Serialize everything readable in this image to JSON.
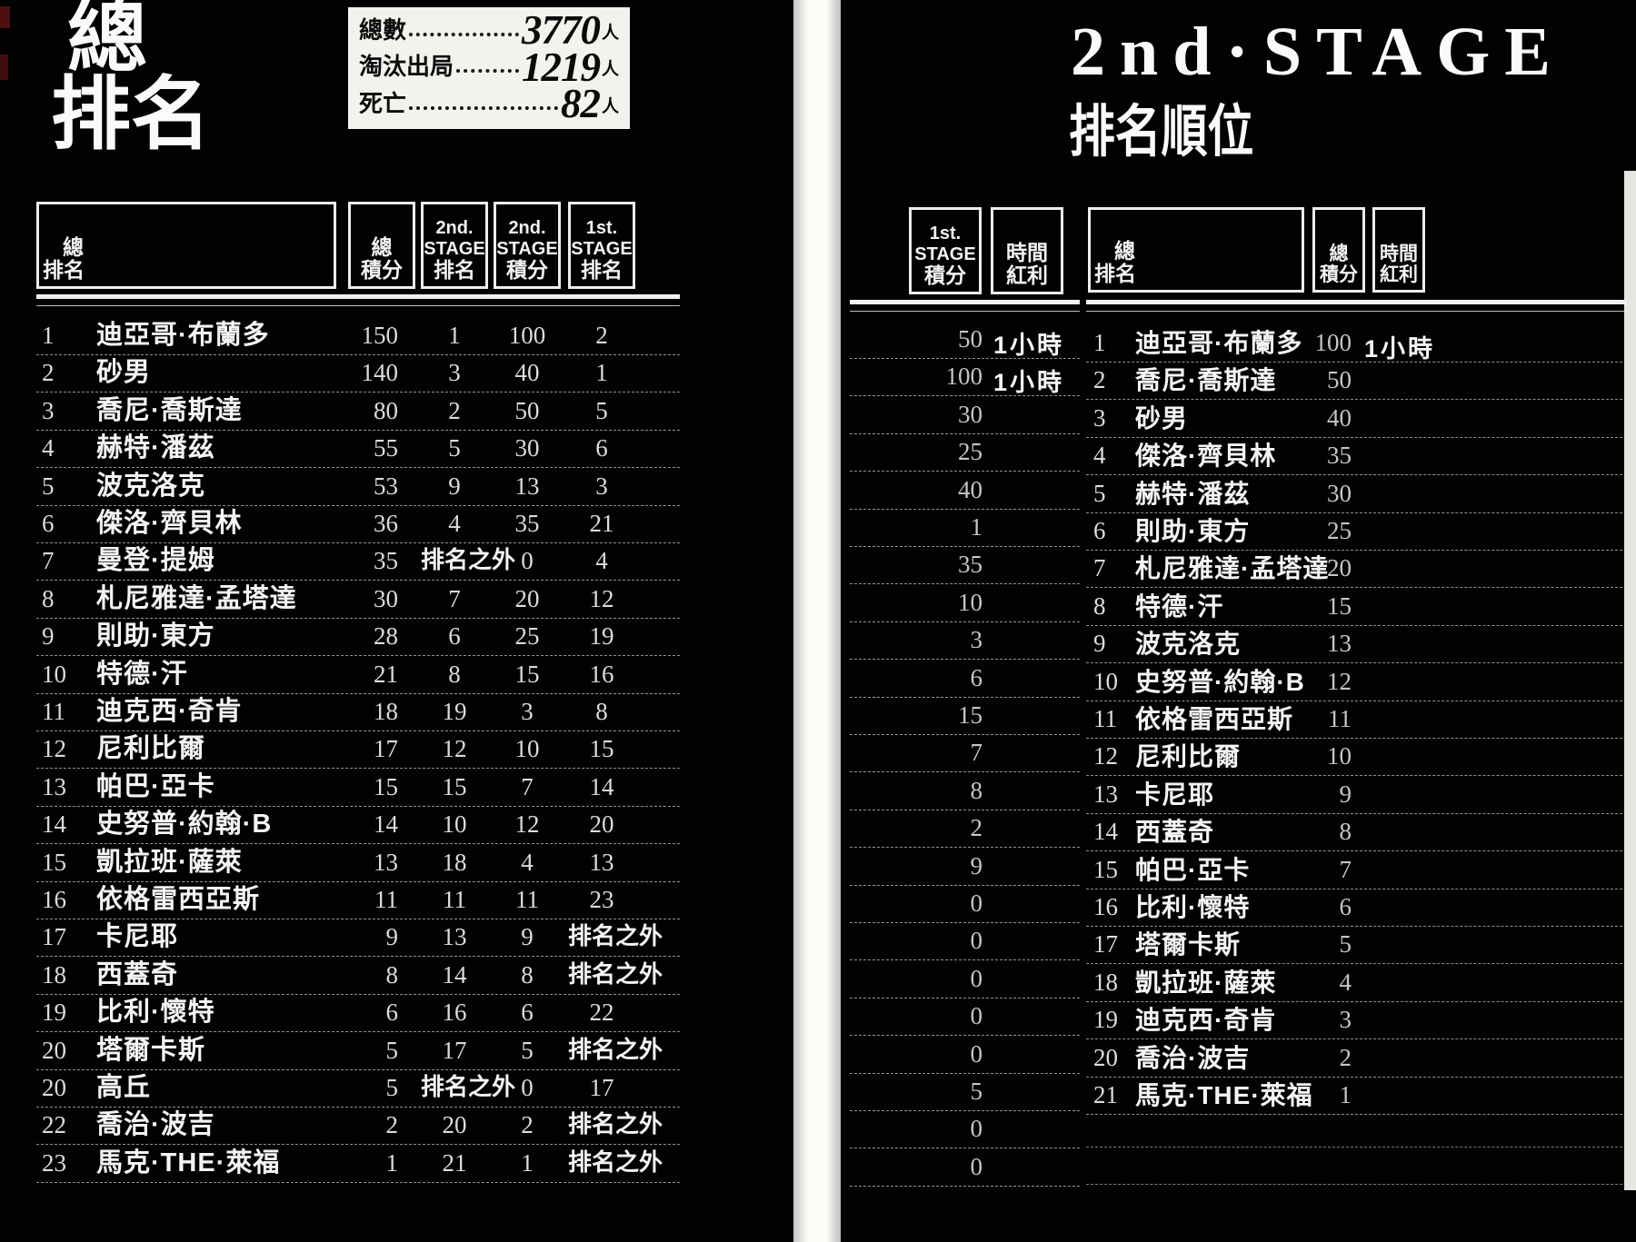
{
  "left_page": {
    "title_line1": "總",
    "title_line2": "排名",
    "stats": [
      {
        "label": "總數",
        "value": "3770",
        "unit": "人"
      },
      {
        "label": "淘汰出局",
        "value": "1219",
        "unit": "人"
      },
      {
        "label": "死亡",
        "value": "82",
        "unit": "人"
      }
    ],
    "table": {
      "header_rank_name": [
        "總",
        "排名"
      ],
      "header_total_pts": [
        "總",
        "積分"
      ],
      "header_stage2_rank": [
        "2nd.",
        "STAGE",
        "排名"
      ],
      "header_stage2_pts": [
        "2nd.",
        "STAGE",
        "積分"
      ],
      "header_stage1_rank": [
        "1st.",
        "STAGE",
        "排名"
      ],
      "rows": [
        {
          "rank": "1",
          "name": "迪亞哥·布蘭多",
          "total": "150",
          "s2rank": "1",
          "s2pts": "100",
          "s1rank": "2"
        },
        {
          "rank": "2",
          "name": "砂男",
          "total": "140",
          "s2rank": "3",
          "s2pts": "40",
          "s1rank": "1"
        },
        {
          "rank": "3",
          "name": "喬尼·喬斯達",
          "total": "80",
          "s2rank": "2",
          "s2pts": "50",
          "s1rank": "5"
        },
        {
          "rank": "4",
          "name": "赫特·潘茲",
          "total": "55",
          "s2rank": "5",
          "s2pts": "30",
          "s1rank": "6"
        },
        {
          "rank": "5",
          "name": "波克洛克",
          "total": "53",
          "s2rank": "9",
          "s2pts": "13",
          "s1rank": "3"
        },
        {
          "rank": "6",
          "name": "傑洛·齊貝林",
          "total": "36",
          "s2rank": "4",
          "s2pts": "35",
          "s1rank": "21"
        },
        {
          "rank": "7",
          "name": "曼登·提姆",
          "total": "35",
          "s2rank": "排名之外",
          "s2pts": "0",
          "s1rank": "4"
        },
        {
          "rank": "8",
          "name": "札尼雅達·孟塔達",
          "total": "30",
          "s2rank": "7",
          "s2pts": "20",
          "s1rank": "12"
        },
        {
          "rank": "9",
          "name": "則助·東方",
          "total": "28",
          "s2rank": "6",
          "s2pts": "25",
          "s1rank": "19"
        },
        {
          "rank": "10",
          "name": "特德·汗",
          "total": "21",
          "s2rank": "8",
          "s2pts": "15",
          "s1rank": "16"
        },
        {
          "rank": "11",
          "name": "迪克西·奇肯",
          "total": "18",
          "s2rank": "19",
          "s2pts": "3",
          "s1rank": "8"
        },
        {
          "rank": "12",
          "name": "尼利比爾",
          "total": "17",
          "s2rank": "12",
          "s2pts": "10",
          "s1rank": "15"
        },
        {
          "rank": "13",
          "name": "帕巴·亞卡",
          "total": "15",
          "s2rank": "15",
          "s2pts": "7",
          "s1rank": "14"
        },
        {
          "rank": "14",
          "name": "史努普·約翰·B",
          "total": "14",
          "s2rank": "10",
          "s2pts": "12",
          "s1rank": "20"
        },
        {
          "rank": "15",
          "name": "凱拉班·薩萊",
          "total": "13",
          "s2rank": "18",
          "s2pts": "4",
          "s1rank": "13"
        },
        {
          "rank": "16",
          "name": "依格雷西亞斯",
          "total": "11",
          "s2rank": "11",
          "s2pts": "11",
          "s1rank": "23"
        },
        {
          "rank": "17",
          "name": "卡尼耶",
          "total": "9",
          "s2rank": "13",
          "s2pts": "9",
          "s1rank": "排名之外"
        },
        {
          "rank": "18",
          "name": "西蓋奇",
          "total": "8",
          "s2rank": "14",
          "s2pts": "8",
          "s1rank": "排名之外"
        },
        {
          "rank": "19",
          "name": "比利·懷特",
          "total": "6",
          "s2rank": "16",
          "s2pts": "6",
          "s1rank": "22"
        },
        {
          "rank": "20",
          "name": "塔爾卡斯",
          "total": "5",
          "s2rank": "17",
          "s2pts": "5",
          "s1rank": "排名之外"
        },
        {
          "rank": "20",
          "name": "高丘",
          "total": "5",
          "s2rank": "排名之外",
          "s2pts": "0",
          "s1rank": "17"
        },
        {
          "rank": "22",
          "name": "喬治·波吉",
          "total": "2",
          "s2rank": "20",
          "s2pts": "2",
          "s1rank": "排名之外"
        },
        {
          "rank": "23",
          "name": "馬克·THE·萊福",
          "total": "1",
          "s2rank": "21",
          "s2pts": "1",
          "s1rank": "排名之外"
        }
      ]
    }
  },
  "continuation": {
    "header_stage1_pts": [
      "1st.",
      "STAGE",
      "積分"
    ],
    "header_time_bonus": [
      "時間",
      "紅利"
    ],
    "rows": [
      {
        "s1pts": "50",
        "bonus": "1小時"
      },
      {
        "s1pts": "100",
        "bonus": "1小時"
      },
      {
        "s1pts": "30",
        "bonus": ""
      },
      {
        "s1pts": "25",
        "bonus": ""
      },
      {
        "s1pts": "40",
        "bonus": ""
      },
      {
        "s1pts": "1",
        "bonus": ""
      },
      {
        "s1pts": "35",
        "bonus": ""
      },
      {
        "s1pts": "10",
        "bonus": ""
      },
      {
        "s1pts": "3",
        "bonus": ""
      },
      {
        "s1pts": "6",
        "bonus": ""
      },
      {
        "s1pts": "15",
        "bonus": ""
      },
      {
        "s1pts": "7",
        "bonus": ""
      },
      {
        "s1pts": "8",
        "bonus": ""
      },
      {
        "s1pts": "2",
        "bonus": ""
      },
      {
        "s1pts": "9",
        "bonus": ""
      },
      {
        "s1pts": "0",
        "bonus": ""
      },
      {
        "s1pts": "0",
        "bonus": ""
      },
      {
        "s1pts": "0",
        "bonus": ""
      },
      {
        "s1pts": "0",
        "bonus": ""
      },
      {
        "s1pts": "0",
        "bonus": ""
      },
      {
        "s1pts": "5",
        "bonus": ""
      },
      {
        "s1pts": "0",
        "bonus": ""
      },
      {
        "s1pts": "0",
        "bonus": ""
      }
    ]
  },
  "right_page": {
    "title": "2nd·STAGE",
    "subtitle": "排名順位",
    "table": {
      "header_rank_name": [
        "總",
        "排名"
      ],
      "header_total_pts": [
        "總",
        "積分"
      ],
      "header_time_bonus": [
        "時間",
        "紅利"
      ],
      "rows": [
        {
          "rank": "1",
          "name": "迪亞哥·布蘭多",
          "pts": "100",
          "bonus": "1小時"
        },
        {
          "rank": "2",
          "name": "喬尼·喬斯達",
          "pts": "50",
          "bonus": ""
        },
        {
          "rank": "3",
          "name": "砂男",
          "pts": "40",
          "bonus": ""
        },
        {
          "rank": "4",
          "name": "傑洛·齊貝林",
          "pts": "35",
          "bonus": ""
        },
        {
          "rank": "5",
          "name": "赫特·潘茲",
          "pts": "30",
          "bonus": ""
        },
        {
          "rank": "6",
          "name": "則助·東方",
          "pts": "25",
          "bonus": ""
        },
        {
          "rank": "7",
          "name": "札尼雅達·孟塔達",
          "pts": "20",
          "bonus": ""
        },
        {
          "rank": "8",
          "name": "特德·汗",
          "pts": "15",
          "bonus": ""
        },
        {
          "rank": "9",
          "name": "波克洛克",
          "pts": "13",
          "bonus": ""
        },
        {
          "rank": "10",
          "name": "史努普·約翰·B",
          "pts": "12",
          "bonus": ""
        },
        {
          "rank": "11",
          "name": "依格雷西亞斯",
          "pts": "11",
          "bonus": ""
        },
        {
          "rank": "12",
          "name": "尼利比爾",
          "pts": "10",
          "bonus": ""
        },
        {
          "rank": "13",
          "name": "卡尼耶",
          "pts": "9",
          "bonus": ""
        },
        {
          "rank": "14",
          "name": "西蓋奇",
          "pts": "8",
          "bonus": ""
        },
        {
          "rank": "15",
          "name": "帕巴·亞卡",
          "pts": "7",
          "bonus": ""
        },
        {
          "rank": "16",
          "name": "比利·懷特",
          "pts": "6",
          "bonus": ""
        },
        {
          "rank": "17",
          "name": "塔爾卡斯",
          "pts": "5",
          "bonus": ""
        },
        {
          "rank": "18",
          "name": "凱拉班·薩萊",
          "pts": "4",
          "bonus": ""
        },
        {
          "rank": "19",
          "name": "迪克西·奇肯",
          "pts": "3",
          "bonus": ""
        },
        {
          "rank": "20",
          "name": "喬治·波吉",
          "pts": "2",
          "bonus": ""
        },
        {
          "rank": "21",
          "name": "馬克·THE·萊福",
          "pts": "1",
          "bonus": ""
        }
      ]
    }
  }
}
